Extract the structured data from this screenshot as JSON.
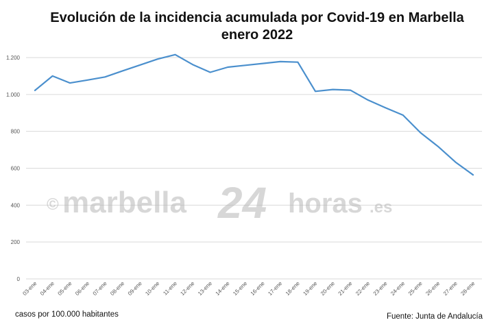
{
  "chart_data": {
    "type": "line",
    "title_lines": [
      "Evolución de la incidencia acumulada por Covid-19 en Marbella",
      "enero 2022"
    ],
    "xlabel": "",
    "ylabel": "",
    "ylim": [
      0,
      1300
    ],
    "y_ticks": [
      0,
      200,
      400,
      600,
      800,
      "1.000",
      "1.200"
    ],
    "y_tick_values": [
      0,
      200,
      400,
      600,
      800,
      1000,
      1200
    ],
    "grid": true,
    "legend": "none",
    "categories": [
      "03-ene",
      "04-ene",
      "05-ene",
      "06-ene",
      "07-ene",
      "08-ene",
      "09-ene",
      "10-ene",
      "11-ene",
      "12-ene",
      "13-ene",
      "14-ene",
      "15-ene",
      "16-ene",
      "17-ene",
      "18-ene",
      "19-ene",
      "20-ene",
      "21-ene",
      "22-ene",
      "23-ene",
      "24-ene",
      "25-ene",
      "26-ene",
      "27-ene",
      "28-ene"
    ],
    "series": [
      {
        "values": [
          1022,
          1100,
          1062,
          1078,
          1095,
          1128,
          1160,
          1192,
          1216,
          1162,
          1120,
          1148,
          1158,
          1168,
          1178,
          1175,
          1017,
          1027,
          1023,
          970,
          928,
          888,
          793,
          718,
          633,
          564
        ],
        "color": "#4a8fcd"
      }
    ]
  },
  "watermark": {
    "copyright": "©",
    "brand_left": "marbella",
    "brand_num": "24",
    "brand_right": "horas",
    "brand_tld": ".es"
  },
  "footer": {
    "left": "casos por 100.000 habitantes",
    "right": "Fuente: Junta de Andalucía"
  }
}
